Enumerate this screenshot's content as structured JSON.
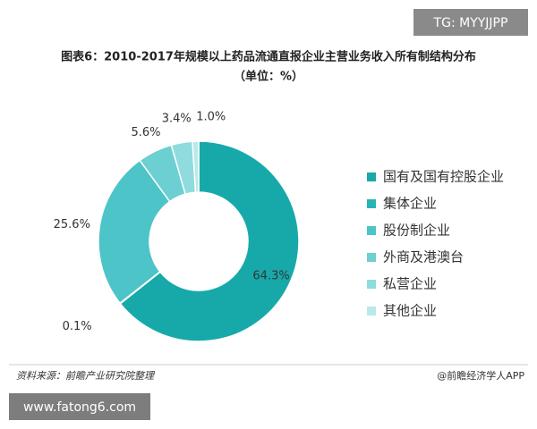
{
  "watermark": "TG: MYYJJPP",
  "chart_data": {
    "type": "donut",
    "title": "图表6：2010-2017年规模以上药品流通直报企业主营业务收入所有制结构分布",
    "subtitle": "（单位：%）",
    "categories": [
      "国有及国有控股企业",
      "集体企业",
      "股份制企业",
      "外商及港澳台",
      "私营企业",
      "其他企业"
    ],
    "values": [
      64.3,
      0.1,
      25.6,
      5.6,
      3.4,
      1.0
    ],
    "value_labels": [
      "64.3%",
      "0.1%",
      "25.6%",
      "5.6%",
      "3.4%",
      "1.0%"
    ],
    "colors": [
      "#17a9aa",
      "#28b3b5",
      "#4dc4c7",
      "#6ccfd2",
      "#8fdbdd",
      "#b9e9eb"
    ],
    "legend": "right"
  },
  "footer": {
    "source": "资料来源：前瞻产业研究院整理",
    "brand": "@前瞻经济学人APP",
    "site": "www.fatong6.com"
  }
}
